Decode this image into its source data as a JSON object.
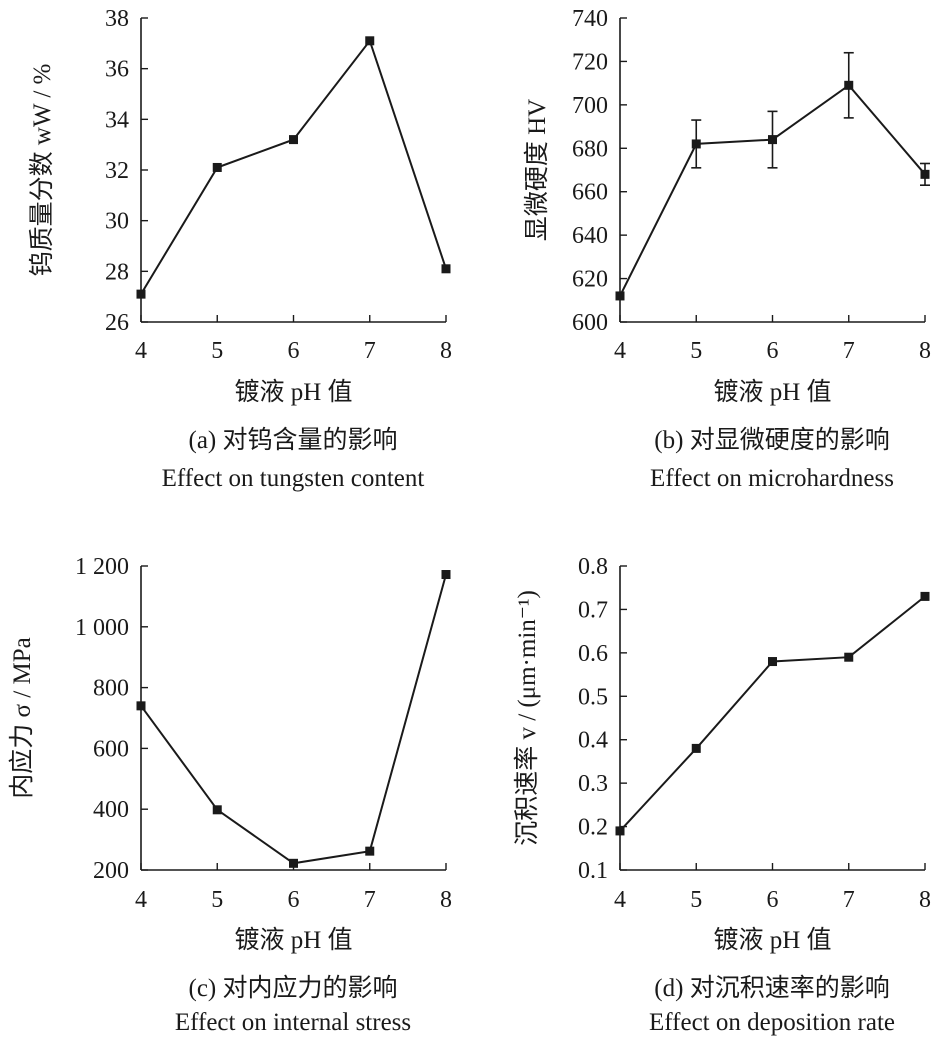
{
  "chart_data": [
    {
      "type": "line",
      "xlabel": "镀液 pH 值",
      "ylabel": "钨质量分数 wW / %",
      "caption_cn": "(a) 对钨含量的影响",
      "caption_en": "Effect on tungsten content",
      "x": [
        4,
        5,
        6,
        7,
        8
      ],
      "y": [
        27.1,
        32.1,
        33.2,
        37.1,
        28.1
      ],
      "xlim": [
        4,
        8
      ],
      "ylim": [
        26,
        38
      ],
      "xticks": [
        "4",
        "5",
        "6",
        "7",
        "8"
      ],
      "yticks": [
        "26",
        "28",
        "30",
        "32",
        "34",
        "36",
        "38"
      ],
      "grid": false,
      "marker": "square"
    },
    {
      "type": "line",
      "xlabel": "镀液 pH 值",
      "ylabel": "显微硬度 HV",
      "caption_cn": "(b) 对显微硬度的影响",
      "caption_en": "Effect on microhardness",
      "x": [
        4,
        5,
        6,
        7,
        8
      ],
      "y": [
        612,
        682,
        684,
        709,
        668
      ],
      "yerr": [
        0,
        11,
        13,
        15,
        5
      ],
      "xlim": [
        4,
        8
      ],
      "ylim": [
        600,
        740
      ],
      "xticks": [
        "4",
        "5",
        "6",
        "7",
        "8"
      ],
      "yticks": [
        "600",
        "620",
        "640",
        "660",
        "680",
        "700",
        "720",
        "740"
      ],
      "grid": false,
      "marker": "square"
    },
    {
      "type": "line",
      "xlabel": "镀液 pH 值",
      "ylabel": "内应力 σ / MPa",
      "caption_cn": "(c) 对内应力的影响",
      "caption_en": "Effect on internal stress",
      "x": [
        4,
        5,
        6,
        7,
        8
      ],
      "y": [
        740,
        398,
        222,
        262,
        1172
      ],
      "xlim": [
        4,
        8
      ],
      "ylim": [
        200,
        1200
      ],
      "xticks": [
        "4",
        "5",
        "6",
        "7",
        "8"
      ],
      "yticks": [
        "200",
        "400",
        "600",
        "800",
        "1 000",
        "1 200"
      ],
      "grid": false,
      "marker": "square"
    },
    {
      "type": "line",
      "xlabel": "镀液 pH 值",
      "ylabel": "沉积速率 v / (μm·min⁻¹)",
      "caption_cn": "(d) 对沉积速率的影响",
      "caption_en": "Effect on deposition rate",
      "x": [
        4,
        5,
        6,
        7,
        8
      ],
      "y": [
        0.19,
        0.38,
        0.58,
        0.59,
        0.73
      ],
      "xlim": [
        4,
        8
      ],
      "ylim": [
        0.1,
        0.8
      ],
      "xticks": [
        "4",
        "5",
        "6",
        "7",
        "8"
      ],
      "yticks": [
        "0.1",
        "0.2",
        "0.3",
        "0.4",
        "0.5",
        "0.6",
        "0.7",
        "0.8"
      ],
      "grid": false,
      "marker": "square"
    }
  ]
}
